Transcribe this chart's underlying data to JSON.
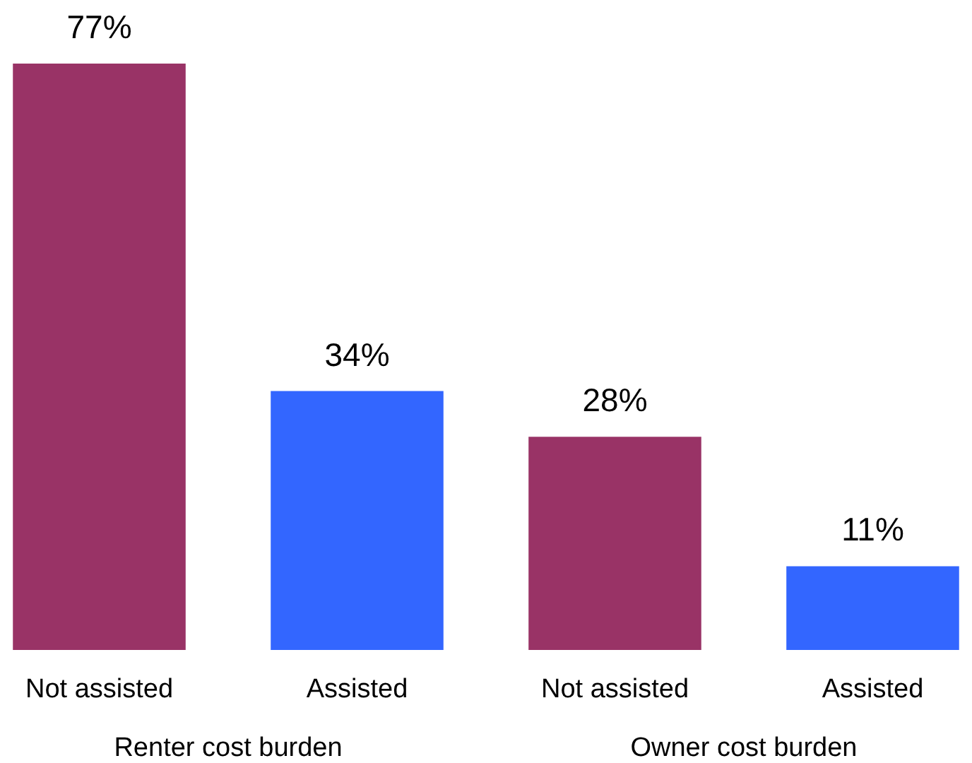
{
  "chart_data": {
    "type": "bar",
    "categories": [
      "Not assisted",
      "Assisted",
      "Not assisted",
      "Assisted"
    ],
    "values": [
      77,
      34,
      28,
      11
    ],
    "colors": [
      "#993366",
      "#3366ff",
      "#993366",
      "#3366ff"
    ],
    "value_labels": [
      "77%",
      "34%",
      "28%",
      "11%"
    ],
    "annotations": [
      "Renter cost burden",
      "Owner cost burden"
    ]
  }
}
